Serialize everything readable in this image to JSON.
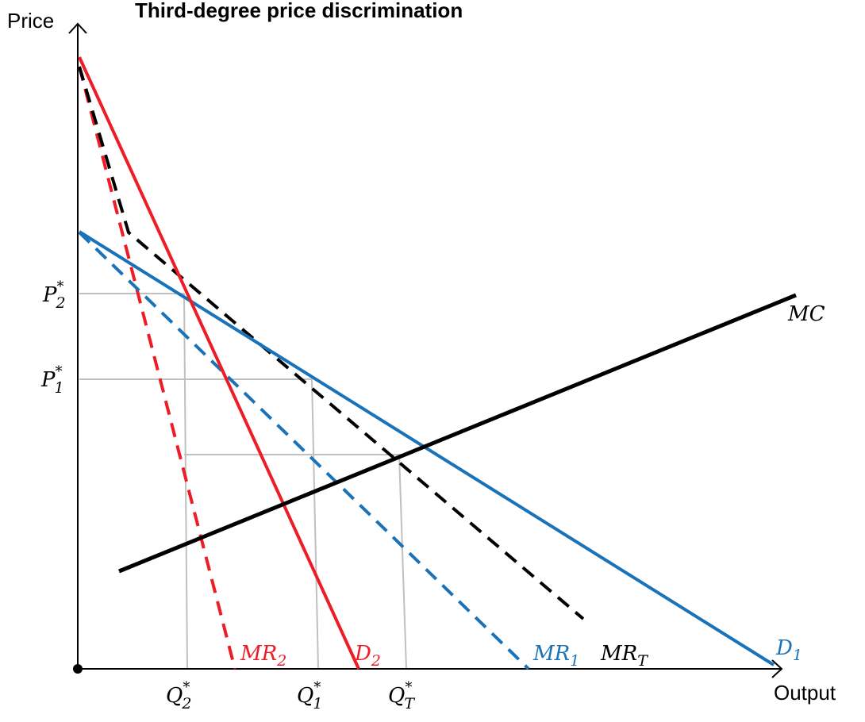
{
  "title": "Third-degree price discrimination",
  "axes": {
    "y_label": "Price",
    "x_label": "Output"
  },
  "curves": {
    "mc": {
      "letter": "MC",
      "sub": "",
      "color": "#000000"
    },
    "d1": {
      "letter": "D",
      "sub": "1",
      "color": "#1a73b8"
    },
    "d2": {
      "letter": "D",
      "sub": "2",
      "color": "#ee1c24"
    },
    "mr1": {
      "letter": "MR",
      "sub": "1",
      "color": "#1a73b8"
    },
    "mr2": {
      "letter": "MR",
      "sub": "2",
      "color": "#ee1c24"
    },
    "mrt": {
      "letter": "MR",
      "sub": "T",
      "color": "#000000"
    }
  },
  "ticks": {
    "p2": {
      "letter": "P",
      "sub": "2",
      "sup": "*"
    },
    "p1": {
      "letter": "P",
      "sub": "1",
      "sup": "*"
    },
    "q2": {
      "letter": "Q",
      "sub": "2",
      "sup": "*"
    },
    "q1": {
      "letter": "Q",
      "sub": "1",
      "sup": "*"
    },
    "qt": {
      "letter": "Q",
      "sub": "T",
      "sup": "*"
    }
  },
  "colors": {
    "axis": "#000000",
    "guide": "#c0c0c0",
    "d1_blue": "#1a73b8",
    "d2_red": "#ee1c24"
  }
}
